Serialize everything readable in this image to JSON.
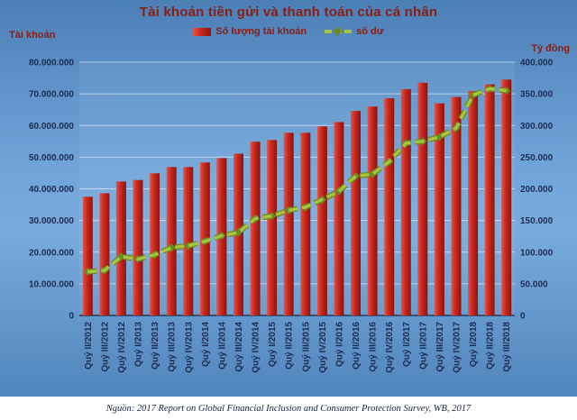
{
  "title": "Tài khoản tiền gửi và thanh toán của cá nhân",
  "axis_left_caption": "Tài khoản",
  "axis_right_caption": "Tỷ đồng",
  "legend": {
    "bars": "Số lượng tài khoản",
    "line": "số dư"
  },
  "footer": "Nguồn: 2017 Report on Global Financial Inclusion and Consumer Protection Survey, WB, 2017",
  "colors": {
    "background_top": "#4b7fb6",
    "background_mid": "#79abdd",
    "title_text": "#8a1e14",
    "tick_text": "#1f2c50",
    "gridline": "rgba(255,255,255,0.55)",
    "axis_line": "#16233f",
    "bar_gradient": [
      "#e2564a",
      "#cb2a1f",
      "#8e130c"
    ],
    "line_color": "#a8c43f",
    "line_edge": "#6d8a1f",
    "footer_background": "#ffffff"
  },
  "chart_data": {
    "type": "bar",
    "subtype": "bar+line combo",
    "title": "Tài khoản tiền gửi và thanh toán của cá nhân",
    "categories": [
      "Quý II/2012",
      "Quý III/2012",
      "Quý IV/2012",
      "Quý I/2013",
      "Quý II/2013",
      "Quý III/2013",
      "Quý IV/2013",
      "Quý I/2014",
      "Quý II/2014",
      "Quý III/2014",
      "Quý IV/2014",
      "Quý I/2015",
      "Quý II/2015",
      "Quý III/2015",
      "Quý IV/2015",
      "Quý I/2016",
      "Quý II/2016",
      "Quý III/2016",
      "Quý IV/2016",
      "Quý I/2017",
      "Quý II/2017",
      "Quý III/2017",
      "Quý IV/2017",
      "Quý I/2018",
      "Quý II/2018",
      "Quý III/2018"
    ],
    "series": [
      {
        "name": "Số lượng tài khoản",
        "type": "bar",
        "axis": "left",
        "values": [
          37500000,
          38600000,
          42300000,
          42800000,
          44900000,
          46900000,
          46900000,
          48300000,
          49700000,
          51100000,
          54900000,
          55400000,
          57700000,
          57700000,
          59700000,
          61100000,
          64600000,
          66000000,
          68600000,
          71500000,
          73500000,
          67000000,
          69000000,
          70900000,
          73000000,
          74500000
        ]
      },
      {
        "name": "số dư",
        "type": "line",
        "axis": "right",
        "values": [
          69000,
          71000,
          93000,
          89000,
          96000,
          107000,
          110000,
          117000,
          126000,
          131000,
          153000,
          157000,
          166000,
          171000,
          183000,
          196000,
          220000,
          223000,
          243000,
          272000,
          275000,
          282000,
          296000,
          348000,
          358000,
          355000
        ]
      }
    ],
    "left_axis": {
      "label": "Tài khoản",
      "min": 0,
      "max": 80000000,
      "step": 10000000
    },
    "right_axis": {
      "label": "Tỷ đồng",
      "min": 0,
      "max": 400000,
      "step": 50000
    },
    "grid": true,
    "legend_position": "top",
    "number_format": "vi-VN dotted thousands"
  }
}
